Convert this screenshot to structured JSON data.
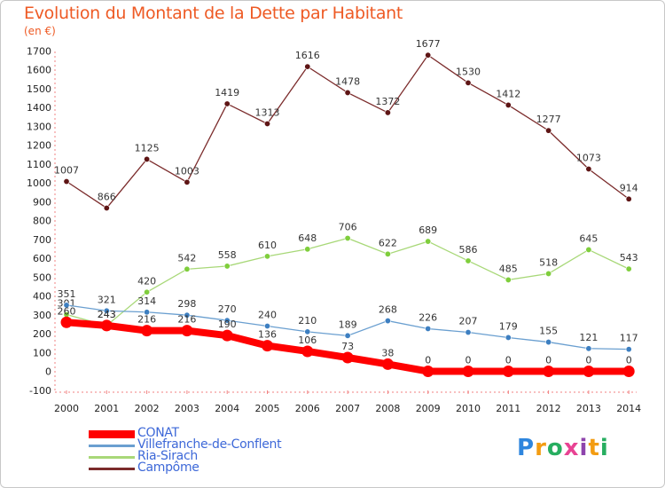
{
  "title": "Evolution du Montant de la Dette par Habitant",
  "subtitle": "(en €)",
  "logo_text": "Proxiti",
  "chart_data": {
    "type": "line",
    "title": "Evolution du Montant de la Dette par Habitant",
    "subtitle": "(en €)",
    "xlabel": "",
    "ylabel": "",
    "x": [
      "2000",
      "2001",
      "2002",
      "2003",
      "2004",
      "2005",
      "2006",
      "2007",
      "2008",
      "2009",
      "2010",
      "2011",
      "2012",
      "2013",
      "2014"
    ],
    "ylim": [
      -100,
      1700
    ],
    "yticks": [
      -100,
      0,
      100,
      200,
      300,
      400,
      500,
      600,
      700,
      800,
      900,
      1000,
      1100,
      1200,
      1300,
      1400,
      1500,
      1600,
      1700
    ],
    "grid": false,
    "legend_position": "bottom-left",
    "series": [
      {
        "name": "Campôme",
        "color": "#7b2b2b",
        "marker_color": "#5e1515",
        "values": [
          1007,
          866,
          1125,
          1003,
          1419,
          1313,
          1616,
          1478,
          1372,
          1677,
          1530,
          1412,
          1277,
          1073,
          914
        ]
      },
      {
        "name": "Ria-Sirach",
        "color": "#a8d878",
        "marker_color": "#7fce3c",
        "values": [
          301,
          243,
          420,
          542,
          558,
          610,
          648,
          706,
          622,
          689,
          586,
          485,
          518,
          645,
          543
        ]
      },
      {
        "name": "Villefranche-de-Conflent",
        "color": "#6a9fd0",
        "marker_color": "#3d7fc1",
        "values": [
          351,
          321,
          314,
          298,
          270,
          240,
          210,
          189,
          268,
          226,
          207,
          179,
          155,
          121,
          117
        ]
      },
      {
        "name": "CONAT",
        "color": "#ff0000",
        "marker_color": "#ff0000",
        "values": [
          260,
          243,
          216,
          216,
          190,
          136,
          106,
          73,
          38,
          0,
          0,
          0,
          0,
          0,
          0
        ]
      }
    ],
    "legend_order": [
      "CONAT",
      "Villefranche-de-Conflent",
      "Ria-Sirach",
      "Campôme"
    ]
  }
}
